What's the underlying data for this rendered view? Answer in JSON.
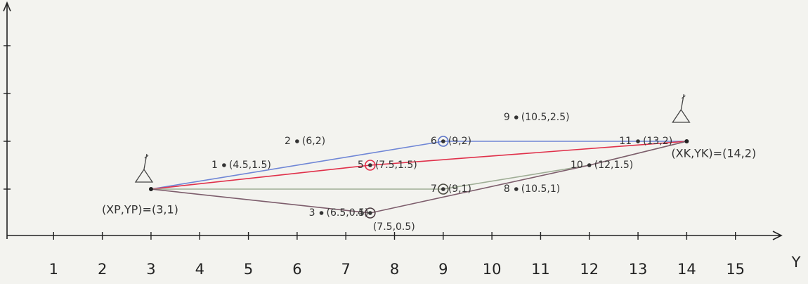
{
  "chart_data": {
    "type": "route-map",
    "x_label": "Y",
    "xlim": [
      0,
      16
    ],
    "ylim": [
      0,
      5
    ],
    "xticks": [
      1,
      2,
      3,
      4,
      5,
      6,
      7,
      8,
      9,
      10,
      11,
      12,
      13,
      14,
      15
    ],
    "yticks": [
      1,
      2,
      3,
      4
    ],
    "endpoints": [
      {
        "label": "(XP,YP)=(3,1)",
        "x": 3,
        "y": 1
      },
      {
        "label": "(XK,YK)=(14,2)",
        "x": 14,
        "y": 2
      }
    ],
    "points": [
      {
        "id": "1",
        "label": "(4.5,1.5)",
        "x": 4.5,
        "y": 1.5
      },
      {
        "id": "2",
        "label": "(6,2)",
        "x": 6,
        "y": 2
      },
      {
        "id": "3",
        "label": "(6.5,0.5)",
        "x": 6.5,
        "y": 0.5
      },
      {
        "id": "4",
        "label": "(7.5,0.5)",
        "x": 7.5,
        "y": 0.5,
        "ring": "#4a3a40"
      },
      {
        "id": "5",
        "label": "(7.5,1.5)",
        "x": 7.5,
        "y": 1.5,
        "ring": "#e0304a"
      },
      {
        "id": "6",
        "label": "(9,2)",
        "x": 9,
        "y": 2,
        "ring": "#5b74c8"
      },
      {
        "id": "7",
        "label": "(9,1)",
        "x": 9,
        "y": 1,
        "ring": "#4a4a40"
      },
      {
        "id": "8",
        "label": "(10.5,1)",
        "x": 10.5,
        "y": 1
      },
      {
        "id": "9",
        "label": "(10.5,2.5)",
        "x": 10.5,
        "y": 2.5
      },
      {
        "id": "10",
        "label": "(12,1.5)",
        "x": 12,
        "y": 1.5
      },
      {
        "id": "11",
        "label": "(13,2)",
        "x": 13,
        "y": 2
      }
    ],
    "series": [
      {
        "color": "#6f86d6",
        "x": [
          3,
          9,
          14
        ],
        "values": [
          1,
          2,
          2
        ]
      },
      {
        "color": "#e0304a",
        "x": [
          3,
          7.5,
          14
        ],
        "values": [
          1,
          1.5,
          2
        ]
      },
      {
        "color": "#9fae96",
        "x": [
          3,
          9,
          12,
          14
        ],
        "values": [
          1,
          1,
          1.5,
          2
        ]
      },
      {
        "color": "#7d5d6c",
        "x": [
          3,
          7.5,
          12,
          14
        ],
        "values": [
          1,
          0.5,
          1.5,
          2
        ]
      }
    ]
  }
}
